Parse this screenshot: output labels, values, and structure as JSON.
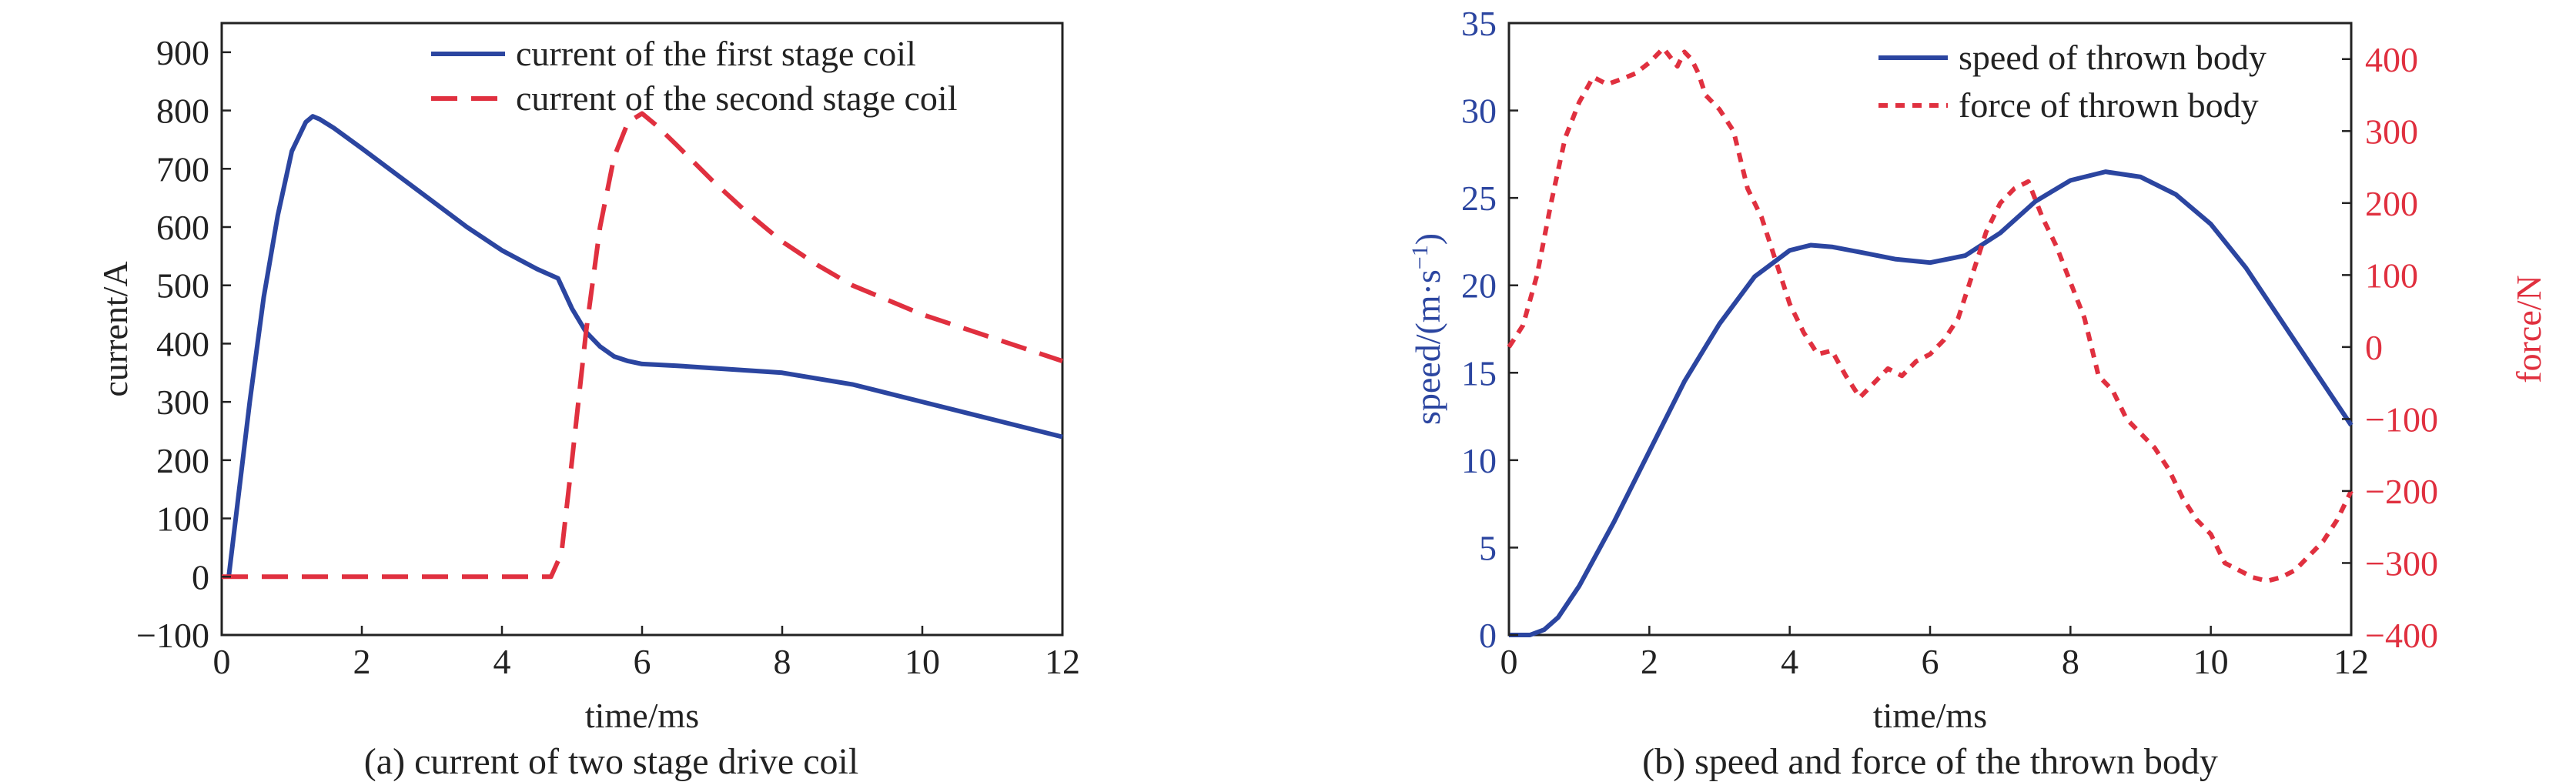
{
  "colors": {
    "blue": "#2b45a0",
    "red": "#e0303f",
    "axis": "#222222"
  },
  "chart_data": [
    {
      "id": "a",
      "type": "line",
      "caption": "(a) current of two stage drive coil",
      "xlabel": "time/ms",
      "ylabel": "current/A",
      "xlim": [
        0,
        12
      ],
      "ylim": [
        -100,
        950
      ],
      "xticks": [
        0,
        2,
        4,
        6,
        8,
        10,
        12
      ],
      "yticks": [
        -100,
        0,
        100,
        200,
        300,
        400,
        500,
        600,
        700,
        800,
        900
      ],
      "grid": false,
      "legend_position": "top-right",
      "series": [
        {
          "name": "current of the first stage coil",
          "style": "solid",
          "color": "#2b45a0",
          "x": [
            0.1,
            0.2,
            0.4,
            0.6,
            0.8,
            1.0,
            1.2,
            1.3,
            1.4,
            1.6,
            2.0,
            2.5,
            3.0,
            3.5,
            4.0,
            4.5,
            4.8,
            5.0,
            5.2,
            5.4,
            5.6,
            5.8,
            6.0,
            6.5,
            7.0,
            8.0,
            9.0,
            10.0,
            11.0,
            12.0
          ],
          "y": [
            0,
            100,
            300,
            480,
            620,
            730,
            780,
            790,
            785,
            770,
            735,
            690,
            645,
            600,
            560,
            528,
            512,
            460,
            420,
            395,
            378,
            370,
            365,
            362,
            358,
            350,
            330,
            300,
            270,
            240
          ]
        },
        {
          "name": "current of the second stage coil",
          "style": "dashed",
          "color": "#e0303f",
          "x": [
            0,
            1,
            2,
            3,
            4,
            4.7,
            4.85,
            5.0,
            5.2,
            5.4,
            5.6,
            5.8,
            6.0,
            6.2,
            6.5,
            7.0,
            7.5,
            8.0,
            8.5,
            9.0,
            9.5,
            10.0,
            10.5,
            11.0,
            11.5,
            12.0
          ],
          "y": [
            0,
            0,
            0,
            0,
            0,
            0,
            40,
            200,
            420,
            600,
            720,
            780,
            795,
            775,
            740,
            680,
            625,
            575,
            535,
            500,
            475,
            450,
            430,
            410,
            390,
            370
          ]
        }
      ]
    },
    {
      "id": "b",
      "type": "line",
      "caption": "(b) speed and force of the thrown body",
      "xlabel": "time/ms",
      "ylabel_left": "speed/(m·s",
      "ylabel_left_sup": "−1",
      "ylabel_left_tail": ")",
      "ylabel_right": "force/N",
      "xlim": [
        0,
        12
      ],
      "ylim_left": [
        0,
        35
      ],
      "ylim_right": [
        -400,
        450
      ],
      "xticks": [
        0,
        2,
        4,
        6,
        8,
        10,
        12
      ],
      "yticks_left": [
        0,
        5,
        10,
        15,
        20,
        25,
        30,
        35
      ],
      "yticks_right": [
        -400,
        -300,
        -200,
        -100,
        0,
        100,
        200,
        300,
        400
      ],
      "grid": false,
      "legend_position": "top-right",
      "series": [
        {
          "name": "speed of thrown body",
          "style": "solid",
          "color": "#2b45a0",
          "axis": "left",
          "x": [
            0,
            0.3,
            0.5,
            0.7,
            1.0,
            1.5,
            2.0,
            2.5,
            3.0,
            3.5,
            4.0,
            4.3,
            4.6,
            5.0,
            5.5,
            6.0,
            6.5,
            7.0,
            7.5,
            8.0,
            8.5,
            9.0,
            9.5,
            10.0,
            10.5,
            11.0,
            11.5,
            12.0
          ],
          "y": [
            0,
            0,
            0.3,
            1.0,
            2.8,
            6.5,
            10.5,
            14.5,
            17.8,
            20.5,
            22.0,
            22.3,
            22.2,
            21.9,
            21.5,
            21.3,
            21.7,
            23.0,
            24.8,
            26.0,
            26.5,
            26.2,
            25.2,
            23.5,
            21.0,
            18.0,
            15.0,
            12.0
          ]
        },
        {
          "name": "force of thrown body",
          "style": "dotted",
          "color": "#e0303f",
          "axis": "right",
          "x": [
            0,
            0.2,
            0.4,
            0.6,
            0.8,
            1.0,
            1.2,
            1.4,
            1.6,
            1.8,
            2.0,
            2.2,
            2.4,
            2.5,
            2.6,
            2.7,
            2.8,
            3.0,
            3.2,
            3.4,
            3.6,
            3.8,
            4.0,
            4.2,
            4.4,
            4.6,
            4.8,
            5.0,
            5.2,
            5.4,
            5.6,
            5.8,
            6.0,
            6.2,
            6.4,
            6.6,
            6.8,
            7.0,
            7.2,
            7.4,
            7.6,
            7.8,
            8.0,
            8.2,
            8.4,
            8.6,
            8.8,
            9.0,
            9.2,
            9.4,
            9.6,
            9.8,
            10.0,
            10.2,
            10.4,
            10.6,
            10.8,
            11.0,
            11.2,
            11.4,
            11.6,
            11.8,
            12.0
          ],
          "y": [
            0,
            30,
            100,
            200,
            290,
            340,
            375,
            365,
            372,
            380,
            395,
            415,
            390,
            410,
            400,
            380,
            350,
            330,
            300,
            220,
            180,
            120,
            60,
            20,
            -10,
            -5,
            -40,
            -70,
            -50,
            -30,
            -40,
            -20,
            -10,
            10,
            40,
            100,
            160,
            200,
            220,
            230,
            180,
            140,
            90,
            40,
            -40,
            -60,
            -100,
            -120,
            -140,
            -170,
            -210,
            -240,
            -260,
            -300,
            -310,
            -320,
            -325,
            -320,
            -310,
            -290,
            -270,
            -240,
            -200
          ]
        }
      ]
    }
  ]
}
